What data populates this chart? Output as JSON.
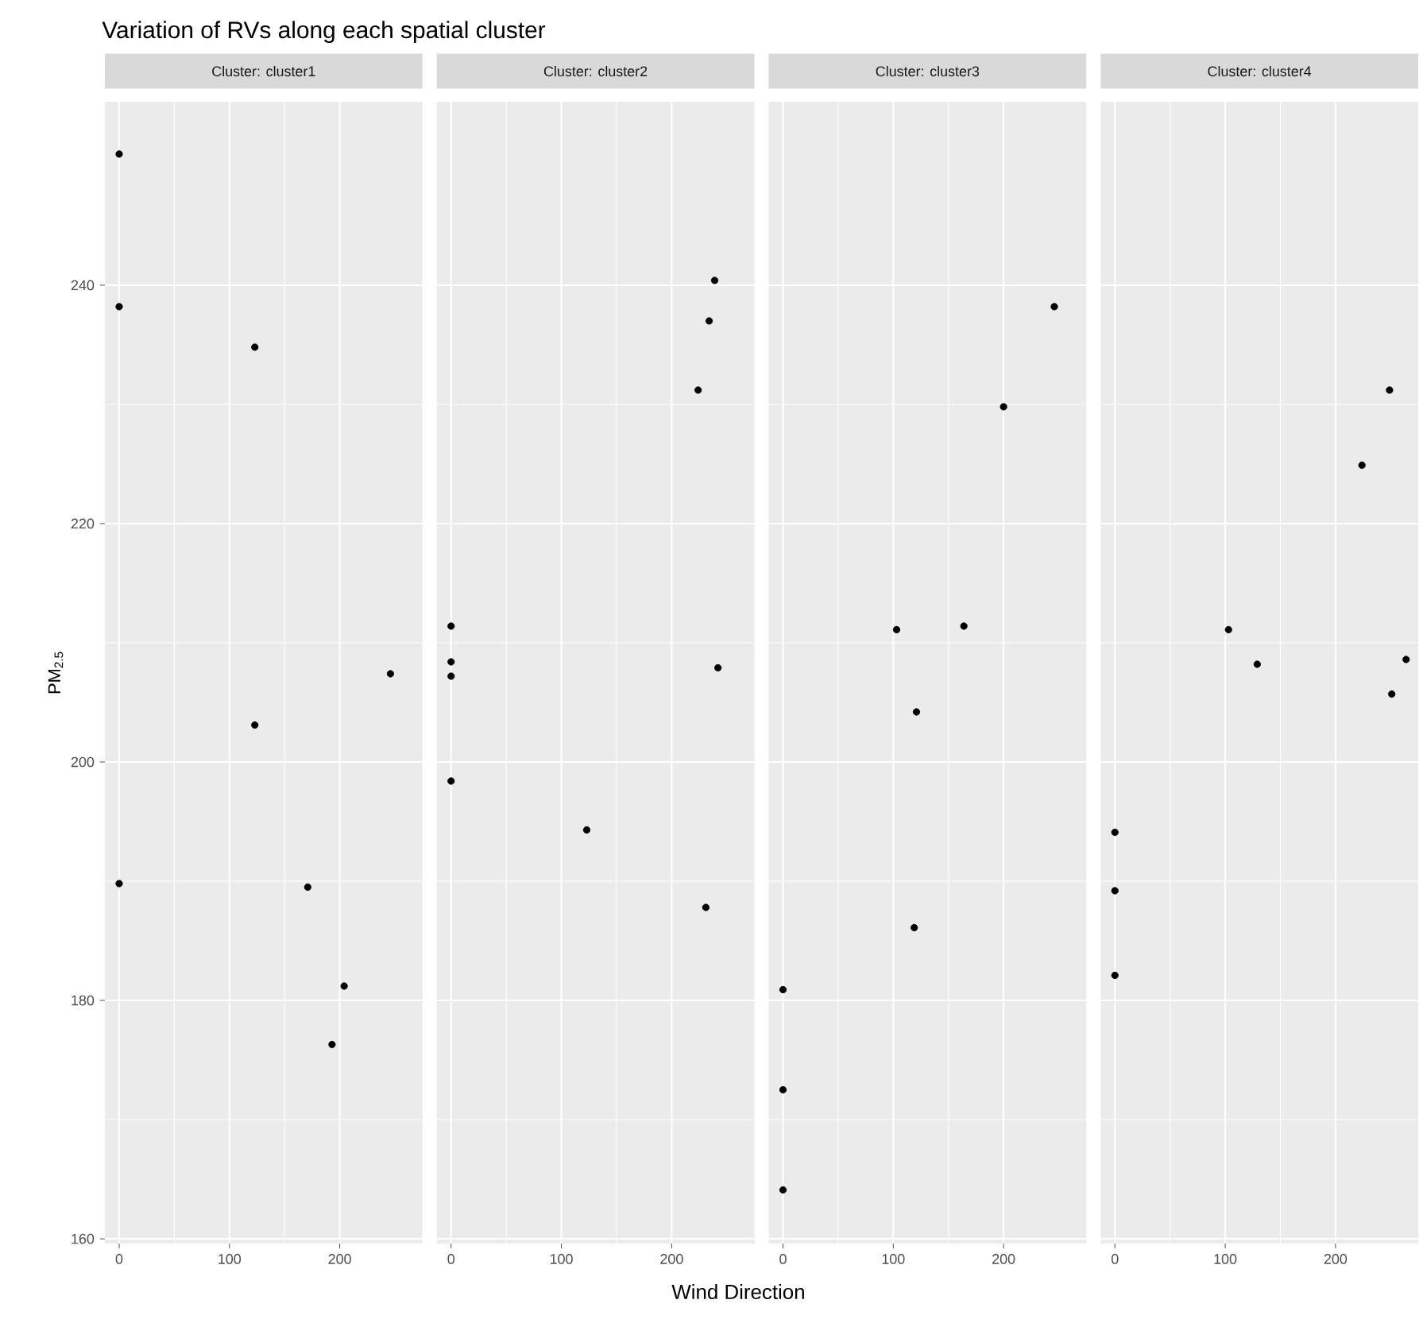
{
  "chart_data": [
    {
      "type": "scatter",
      "title": "Variation of RVs along each spatial cluster",
      "subtitle": "Cluster: cluster1",
      "ylabel": "PM$_{2.5}$",
      "color": "#000000",
      "marker": "circle",
      "grid": true,
      "x": [
        0,
        0,
        123,
        246,
        123,
        0,
        171,
        204,
        193
      ],
      "values": [
        251.0,
        238.2,
        234.8,
        207.4,
        203.1,
        189.8,
        189.5,
        181.2,
        176.3
      ],
      "xlim": [
        -13,
        275
      ],
      "xticks": [
        0,
        100,
        200
      ],
      "ylim": [
        159.6,
        255.4
      ],
      "yticks": [
        160,
        180,
        200,
        220,
        240
      ]
    },
    {
      "type": "scatter",
      "subtitle": "Cluster: cluster2",
      "xlabel": "Wind Direction",
      "color": "#000000",
      "marker": "circle",
      "grid": true,
      "tick_labels": "x",
      "x": [
        239,
        234,
        224,
        0,
        0,
        0,
        242,
        0,
        123,
        231
      ],
      "values": [
        240.4,
        237.0,
        231.2,
        211.4,
        208.4,
        207.2,
        207.9,
        198.4,
        194.3,
        187.8
      ],
      "xlim": [
        -13,
        275
      ],
      "xticks": [
        0,
        100,
        200
      ],
      "ylim": [
        159.6,
        255.4
      ],
      "yticks": [
        160,
        180,
        200,
        220,
        240
      ]
    },
    {
      "type": "scatter",
      "subtitle": "Cluster: cluster3",
      "color": "#000000",
      "marker": "circle",
      "grid": true,
      "tick_labels": "x",
      "x": [
        246,
        200,
        103,
        164,
        121,
        119,
        0,
        0,
        0
      ],
      "values": [
        238.2,
        229.8,
        211.1,
        211.4,
        204.2,
        186.1,
        180.9,
        172.5,
        164.1
      ],
      "xlim": [
        -13,
        275
      ],
      "xticks": [
        0,
        100,
        200
      ],
      "ylim": [
        159.6,
        255.4
      ],
      "yticks": [
        160,
        180,
        200,
        220,
        240
      ]
    },
    {
      "type": "scatter",
      "subtitle": "Cluster: cluster4",
      "color": "#000000",
      "marker": "circle",
      "grid": true,
      "tick_labels": "x",
      "x": [
        249,
        224,
        103,
        129,
        264,
        251,
        0,
        0,
        0
      ],
      "values": [
        231.2,
        224.9,
        211.1,
        208.2,
        208.6,
        205.7,
        194.1,
        189.2,
        182.1
      ],
      "xlim": [
        -13,
        275
      ],
      "xticks": [
        0,
        100,
        200
      ],
      "ylim": [
        159.6,
        255.4
      ],
      "yticks": [
        160,
        180,
        200,
        220,
        240
      ]
    }
  ]
}
